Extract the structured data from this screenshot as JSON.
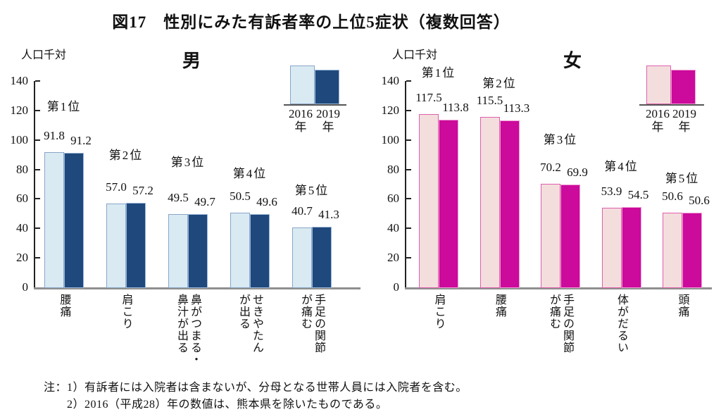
{
  "title": "図17　性別にみた有訴者率の上位5症状（複数回答）",
  "notes": {
    "line1": "注：1）有訴者には入院者は含まないが、分母となる世帯人員には入院者を含む。",
    "line2": "2）2016（平成28）年の数値は、熊本県を除いたものである。"
  },
  "chart_data": [
    {
      "type": "bar",
      "gender_title": "男",
      "unit_label": "人口千対",
      "ylim": [
        0,
        140
      ],
      "ytick_step": 20,
      "grid": false,
      "legend": {
        "years": [
          "2016",
          "2019"
        ],
        "suffix": "年",
        "position": "top-right"
      },
      "rank_labels": [
        "第1位",
        "第2位",
        "第3位",
        "第4位",
        "第5位"
      ],
      "categories": [
        "腰痛",
        "肩こり",
        "鼻がつまる・\n鼻汁が出る",
        "せきやたん\nが出る",
        "手足の関節\nが痛む"
      ],
      "series": [
        {
          "name": "2016年",
          "fill": "#d9eaf2",
          "border": "#8aa5c8",
          "values": [
            91.8,
            57.0,
            49.5,
            50.5,
            40.7
          ]
        },
        {
          "name": "2019年",
          "fill": "#1f497d",
          "border": "#9db7d9",
          "values": [
            91.2,
            57.2,
            49.7,
            49.6,
            41.3
          ]
        }
      ]
    },
    {
      "type": "bar",
      "gender_title": "女",
      "unit_label": "人口千対",
      "ylim": [
        0,
        140
      ],
      "ytick_step": 20,
      "grid": false,
      "legend": {
        "years": [
          "2016",
          "2019"
        ],
        "suffix": "年",
        "position": "top-right"
      },
      "rank_labels": [
        "第1位",
        "第2位",
        "第3位",
        "第4位",
        "第5位"
      ],
      "categories": [
        "肩こり",
        "腰痛",
        "手足の関節\nが痛む",
        "体がだるい",
        "頭痛"
      ],
      "series": [
        {
          "name": "2016年",
          "fill": "#f3dedd",
          "border": "#e05fae",
          "values": [
            117.5,
            115.5,
            70.2,
            53.9,
            50.6
          ]
        },
        {
          "name": "2019年",
          "fill": "#cc0a9b",
          "border": "#ee9cd4",
          "values": [
            113.8,
            113.3,
            69.9,
            54.5,
            50.6
          ]
        }
      ]
    }
  ]
}
